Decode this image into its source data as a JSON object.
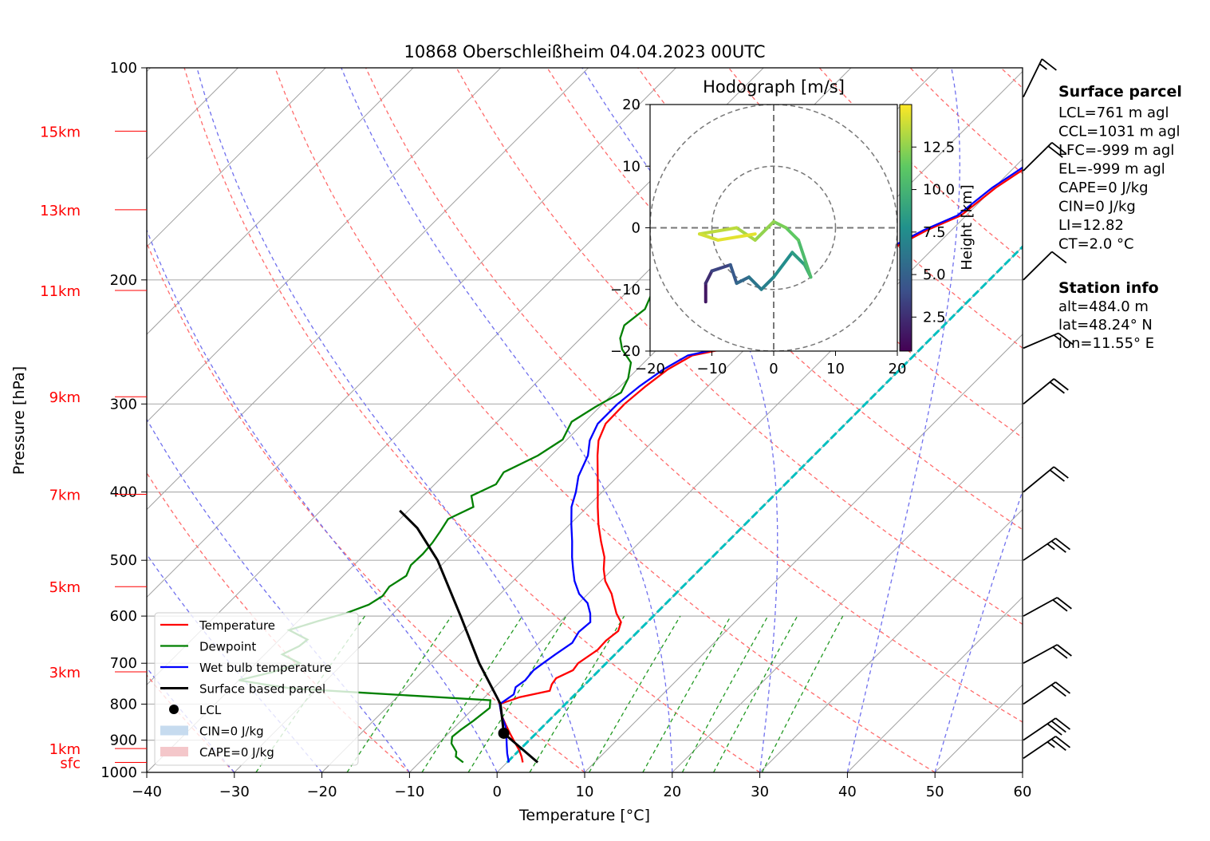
{
  "chart_data": {
    "type": "line",
    "title": "10868 Oberschleißheim 04.04.2023 00UTC",
    "xlabel": "Temperature [°C]",
    "ylabel": "Pressure [hPa]",
    "xlim": [
      -40,
      60
    ],
    "ylim": [
      1000,
      100
    ],
    "y_scale": "log",
    "x_ticks": [
      -40,
      -30,
      -20,
      -10,
      0,
      10,
      20,
      30,
      40,
      50,
      60
    ],
    "y_ticks": [
      100,
      200,
      300,
      400,
      500,
      600,
      700,
      800,
      900,
      1000
    ],
    "height_labels": [
      {
        "label": "15km",
        "p": 123
      },
      {
        "label": "13km",
        "p": 159
      },
      {
        "label": "11km",
        "p": 207
      },
      {
        "label": "9km",
        "p": 293
      },
      {
        "label": "7km",
        "p": 403
      },
      {
        "label": "5km",
        "p": 545
      },
      {
        "label": "3km",
        "p": 720
      },
      {
        "label": "1km",
        "p": 925
      },
      {
        "label": "sfc",
        "p": 968
      }
    ],
    "series": [
      {
        "name": "Temperature",
        "color": "#ff0000",
        "points": [
          [
            1.8,
            968
          ],
          [
            1,
            950
          ],
          [
            0,
            930
          ],
          [
            -1.5,
            905
          ],
          [
            -3,
            880
          ],
          [
            -4.5,
            855
          ],
          [
            -6,
            830
          ],
          [
            -7.5,
            800
          ],
          [
            -6,
            782
          ],
          [
            -3.3,
            766
          ],
          [
            -3.8,
            750
          ],
          [
            -4,
            735
          ],
          [
            -3,
            716
          ],
          [
            -3.2,
            700
          ],
          [
            -2.5,
            670
          ],
          [
            -2.6,
            650
          ],
          [
            -2.3,
            630
          ],
          [
            -3,
            612
          ],
          [
            -4.5,
            595
          ],
          [
            -6,
            575
          ],
          [
            -7.3,
            558
          ],
          [
            -9.5,
            535
          ],
          [
            -11,
            515
          ],
          [
            -12.3,
            495
          ],
          [
            -14.5,
            470
          ],
          [
            -16.7,
            445
          ],
          [
            -18.8,
            420
          ],
          [
            -20.5,
            400
          ],
          [
            -22.3,
            380
          ],
          [
            -24.7,
            355
          ],
          [
            -26.3,
            338
          ],
          [
            -27.4,
            320
          ],
          [
            -27.5,
            300
          ],
          [
            -27.1,
            283
          ],
          [
            -26.5,
            268
          ],
          [
            -25.3,
            256
          ],
          [
            -23.1,
            252
          ],
          [
            -21.5,
            247
          ],
          [
            -19.8,
            237
          ],
          [
            -19.1,
            226
          ],
          [
            -17.5,
            216
          ],
          [
            -17,
            203
          ],
          [
            -15.7,
            191
          ],
          [
            -14.6,
            180
          ],
          [
            -12.8,
            170
          ],
          [
            -10.6,
            162
          ],
          [
            -9.8,
            148
          ],
          [
            -8.3,
            136
          ],
          [
            -6.8,
            126
          ],
          [
            -6.3,
            120
          ]
        ]
      },
      {
        "name": "Dewpoint",
        "color": "#008000",
        "points": [
          [
            -5,
            968
          ],
          [
            -6.5,
            950
          ],
          [
            -7,
            935
          ],
          [
            -8.5,
            910
          ],
          [
            -9.2,
            890
          ],
          [
            -9,
            870
          ],
          [
            -8.6,
            845
          ],
          [
            -8.2,
            810
          ],
          [
            -9,
            790
          ],
          [
            -17,
            780
          ],
          [
            -25,
            770
          ],
          [
            -33,
            760
          ],
          [
            -36,
            752
          ],
          [
            -40,
            740
          ],
          [
            -37,
            720
          ],
          [
            -35,
            700
          ],
          [
            -38,
            680
          ],
          [
            -37,
            662
          ],
          [
            -36.8,
            648
          ],
          [
            -40,
            628
          ],
          [
            -37.7,
            610
          ],
          [
            -35.4,
            594
          ],
          [
            -33.8,
            578
          ],
          [
            -33.2,
            562
          ],
          [
            -33.5,
            545
          ],
          [
            -32.8,
            526
          ],
          [
            -33.5,
            508
          ],
          [
            -33.4,
            490
          ],
          [
            -33.6,
            472
          ],
          [
            -34,
            455
          ],
          [
            -34.5,
            437
          ],
          [
            -33,
            420
          ],
          [
            -34.5,
            405
          ],
          [
            -33,
            390
          ],
          [
            -33.5,
            375
          ],
          [
            -31.5,
            355
          ],
          [
            -30.5,
            337
          ],
          [
            -31.5,
            318
          ],
          [
            -30.5,
            303
          ],
          [
            -29.2,
            289
          ],
          [
            -30,
            276
          ],
          [
            -31.5,
            262
          ],
          [
            -34,
            251
          ],
          [
            -35.5,
            242
          ],
          [
            -36.5,
            232
          ],
          [
            -36,
            220
          ],
          [
            -37.2,
            207
          ],
          [
            -35.5,
            193
          ],
          [
            -35,
            183
          ],
          [
            -34.5,
            172
          ],
          [
            -34.2,
            162
          ],
          [
            -33,
            153
          ],
          [
            -32.5,
            143
          ],
          [
            -31.3,
            133
          ],
          [
            -29.7,
            124
          ],
          [
            -29.3,
            120
          ]
        ]
      },
      {
        "name": "Wet bulb temperature",
        "color": "#0000ff",
        "points": [
          [
            0.2,
            968
          ],
          [
            -1,
            940
          ],
          [
            -2,
            915
          ],
          [
            -3,
            890
          ],
          [
            -4.3,
            860
          ],
          [
            -6,
            830
          ],
          [
            -7.5,
            800
          ],
          [
            -7,
            775
          ],
          [
            -7.6,
            757
          ],
          [
            -7.3,
            740
          ],
          [
            -7.5,
            716
          ],
          [
            -7.2,
            700
          ],
          [
            -6.8,
            680
          ],
          [
            -6.2,
            655
          ],
          [
            -6.7,
            632
          ],
          [
            -6.5,
            612
          ],
          [
            -7.5,
            595
          ],
          [
            -9,
            575
          ],
          [
            -11,
            558
          ],
          [
            -13,
            535
          ],
          [
            -14.5,
            515
          ],
          [
            -16,
            495
          ],
          [
            -17.8,
            470
          ],
          [
            -19.8,
            445
          ],
          [
            -21.8,
            420
          ],
          [
            -23,
            400
          ],
          [
            -24.5,
            380
          ],
          [
            -25.8,
            355
          ],
          [
            -27.3,
            338
          ],
          [
            -28.3,
            320
          ],
          [
            -28.3,
            300
          ],
          [
            -27.8,
            283
          ],
          [
            -27,
            268
          ],
          [
            -25.8,
            256
          ],
          [
            -23.8,
            252
          ],
          [
            -21.9,
            247
          ],
          [
            -20.4,
            237
          ],
          [
            -19.6,
            226
          ],
          [
            -17.9,
            216
          ],
          [
            -17.4,
            203
          ],
          [
            -16.1,
            191
          ],
          [
            -15,
            180
          ],
          [
            -13.2,
            170
          ],
          [
            -11,
            162
          ],
          [
            -10.2,
            148
          ],
          [
            -8.7,
            136
          ],
          [
            -7.2,
            126
          ],
          [
            -6.8,
            120
          ]
        ]
      },
      {
        "name": "Surface based parcel",
        "color": "#000000",
        "points": [
          [
            3.5,
            968
          ],
          [
            -3.7,
            880
          ],
          [
            -7.4,
            800
          ],
          [
            -14.5,
            700
          ],
          [
            -22,
            600
          ],
          [
            -31,
            500
          ],
          [
            -37,
            450
          ],
          [
            -41,
            425
          ]
        ]
      }
    ],
    "legend": {
      "placement": "lower-left",
      "entries": [
        {
          "label": "Temperature",
          "kind": "line",
          "color": "#ff0000"
        },
        {
          "label": "Dewpoint",
          "kind": "line",
          "color": "#008000"
        },
        {
          "label": "Wet bulb temperature",
          "kind": "line",
          "color": "#0000ff"
        },
        {
          "label": "Surface based parcel",
          "kind": "line",
          "color": "#000000"
        },
        {
          "label": "LCL",
          "kind": "dot",
          "color": "#000000"
        },
        {
          "label": "CIN=0 J/kg",
          "kind": "patch",
          "color": "#c6dbef"
        },
        {
          "label": "CAPE=0 J/kg",
          "kind": "patch",
          "color": "#f4c7ca"
        }
      ]
    },
    "lcl": {
      "T": -3.7,
      "p": 880
    },
    "freezing_level_dashed": {
      "color": "#00bfbf",
      "T": 0
    },
    "wind_barbs": [
      {
        "p": 955,
        "speed_kt": 25,
        "dir": 240
      },
      {
        "p": 900,
        "speed_kt": 30,
        "dir": 240
      },
      {
        "p": 800,
        "speed_kt": 20,
        "dir": 240
      },
      {
        "p": 700,
        "speed_kt": 20,
        "dir": 245
      },
      {
        "p": 600,
        "speed_kt": 20,
        "dir": 245
      },
      {
        "p": 500,
        "speed_kt": 25,
        "dir": 240
      },
      {
        "p": 400,
        "speed_kt": 20,
        "dir": 235
      },
      {
        "p": 300,
        "speed_kt": 20,
        "dir": 235
      },
      {
        "p": 250,
        "speed_kt": 15,
        "dir": 250
      },
      {
        "p": 200,
        "speed_kt": 10,
        "dir": 230
      },
      {
        "p": 140,
        "speed_kt": 20,
        "dir": 310
      },
      {
        "p": 110,
        "speed_kt": 15,
        "dir": 330
      }
    ]
  },
  "hodograph": {
    "title": "Hodograph [m/s]",
    "xlim": [
      -20,
      20
    ],
    "ylim": [
      -20,
      20
    ],
    "ticks": [
      -20,
      -10,
      0,
      10,
      20
    ],
    "rings": [
      10,
      20
    ],
    "colorbar": {
      "label": "Height [km]",
      "ticks": [
        2.5,
        5.0,
        7.5,
        10.0,
        12.5
      ],
      "range": [
        0.5,
        15
      ]
    },
    "trace": [
      {
        "u": -11,
        "v": -12,
        "h": 1
      },
      {
        "u": -11,
        "v": -9,
        "h": 2
      },
      {
        "u": -10,
        "v": -7,
        "h": 3
      },
      {
        "u": -7,
        "v": -6,
        "h": 4
      },
      {
        "u": -6,
        "v": -9,
        "h": 5
      },
      {
        "u": -4,
        "v": -8,
        "h": 5.8
      },
      {
        "u": -2,
        "v": -10,
        "h": 6.5
      },
      {
        "u": 0,
        "v": -8,
        "h": 7
      },
      {
        "u": 3,
        "v": -4,
        "h": 8
      },
      {
        "u": 5,
        "v": -6,
        "h": 9
      },
      {
        "u": 6,
        "v": -8,
        "h": 10
      },
      {
        "u": 4,
        "v": -2,
        "h": 11
      },
      {
        "u": 2,
        "v": 0,
        "h": 11.7
      },
      {
        "u": 0,
        "v": 1,
        "h": 12.3
      },
      {
        "u": -3,
        "v": -2,
        "h": 12.8
      },
      {
        "u": -6,
        "v": 0,
        "h": 13.3
      },
      {
        "u": -12,
        "v": -1,
        "h": 13.8
      },
      {
        "u": -9,
        "v": -2,
        "h": 14.2
      },
      {
        "u": -3,
        "v": -1,
        "h": 14.6
      }
    ]
  },
  "surface_parcel": {
    "heading": "Surface parcel",
    "lines": [
      "LCL=761 m agl",
      "CCL=1031 m agl",
      "LFC=-999 m agl",
      "EL=-999 m agl",
      "CAPE=0 J/kg",
      "CIN=0 J/kg",
      "LI=12.82",
      "CT=2.0 °C"
    ]
  },
  "station_info": {
    "heading": "Station info",
    "lines": [
      "alt=484.0 m",
      "lat=48.24° N",
      "lon=11.55° E"
    ]
  }
}
